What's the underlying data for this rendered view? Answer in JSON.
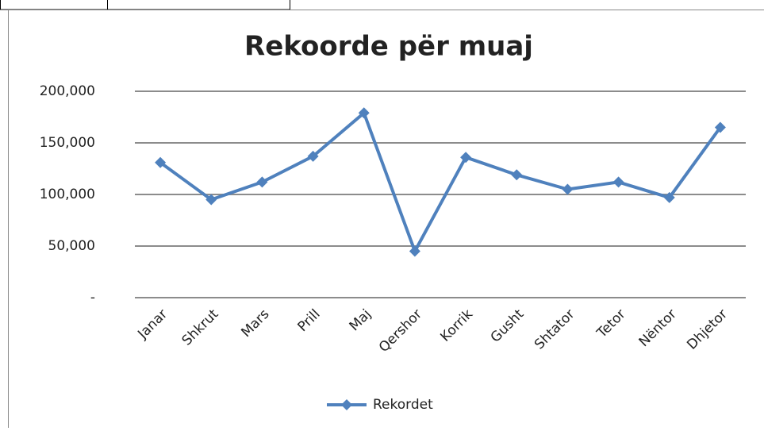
{
  "chart_data": {
    "type": "line",
    "title": "Rekoorde për muaj",
    "categories": [
      "Janar",
      "Shkrut",
      "Mars",
      "Prill",
      "Maj",
      "Qershor",
      "Korrik",
      "Gusht",
      "Shtator",
      "Tetor",
      "Nëntor",
      "Dhjetor"
    ],
    "series": [
      {
        "name": "Rekordet",
        "color": "#4f81bd",
        "values": [
          131000,
          95000,
          112000,
          137000,
          179000,
          45000,
          136000,
          119000,
          105000,
          112000,
          97000,
          165000
        ]
      }
    ],
    "ylim": [
      0,
      200000
    ],
    "yticks": [
      {
        "value": 0,
        "label": "-"
      },
      {
        "value": 50000,
        "label": "50,000"
      },
      {
        "value": 100000,
        "label": "100,000"
      },
      {
        "value": 150000,
        "label": "150,000"
      },
      {
        "value": 200000,
        "label": "200,000"
      }
    ],
    "grid": true,
    "legend": "bottom"
  }
}
